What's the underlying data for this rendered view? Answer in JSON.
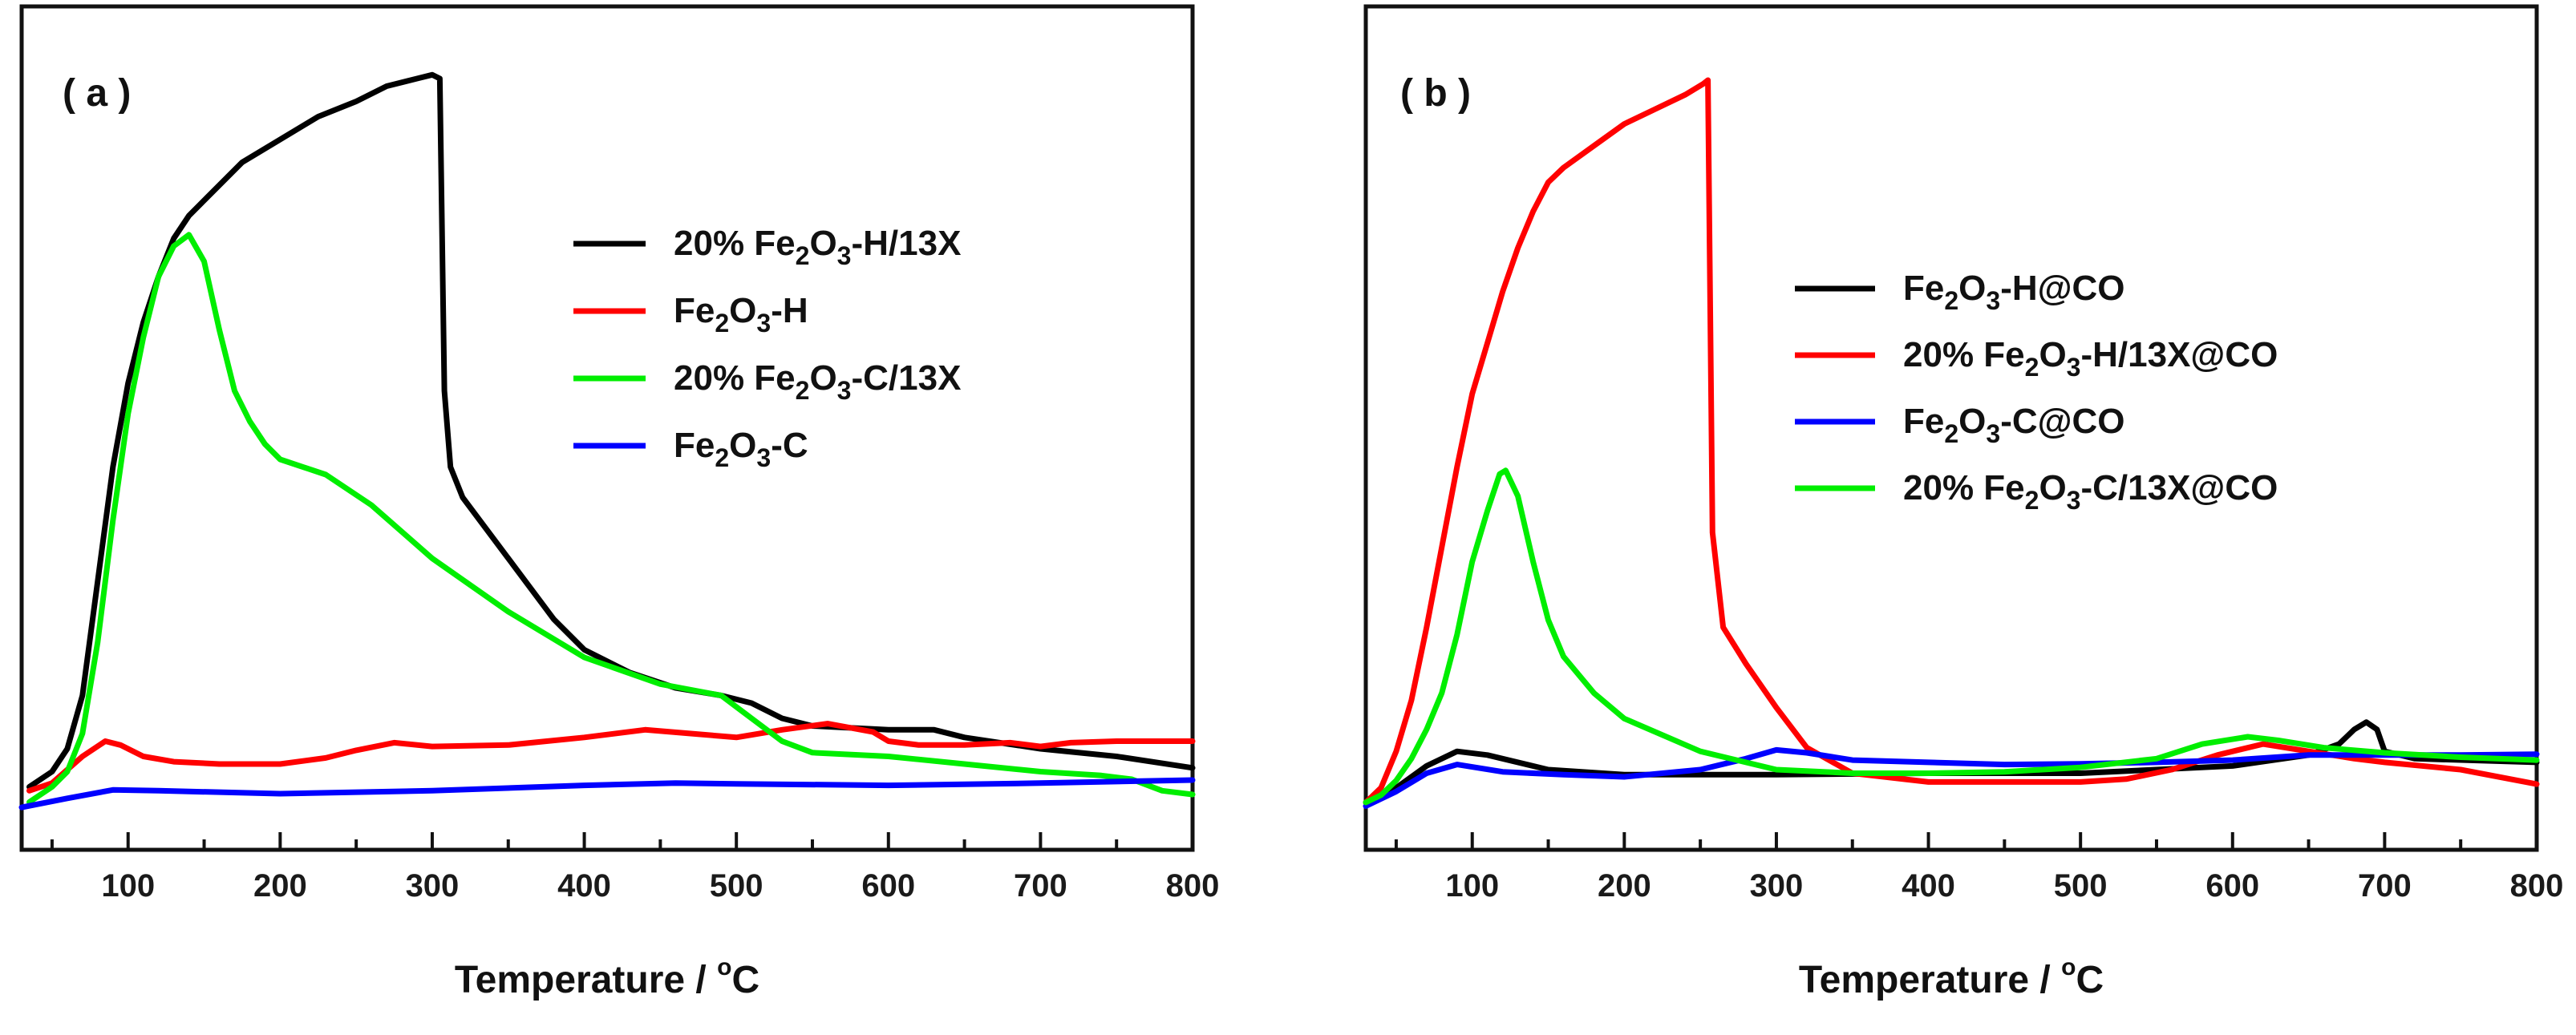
{
  "chart_data": [
    {
      "type": "line",
      "panel_label": "( a )",
      "xlabel": "Temperature / ",
      "xlabel_unit_sup": "o",
      "xlabel_unit": "C",
      "xlim": [
        30,
        800
      ],
      "ylim": [
        0,
        100
      ],
      "xticks": [
        100,
        200,
        300,
        400,
        500,
        600,
        700,
        800
      ],
      "yticks_shown": false,
      "legend_position": "top-right",
      "series": [
        {
          "name": "20% Fe2O3-H/13X",
          "legend": {
            "pre": "20% Fe",
            "s1": "2",
            "mid": "O",
            "s2": "3",
            "post": "-H/13X"
          },
          "color": "#000000",
          "points": [
            [
              35,
              3
            ],
            [
              50,
              5
            ],
            [
              60,
              8
            ],
            [
              70,
              15
            ],
            [
              80,
              30
            ],
            [
              90,
              45
            ],
            [
              100,
              56
            ],
            [
              110,
              64
            ],
            [
              120,
              70
            ],
            [
              130,
              75
            ],
            [
              140,
              78
            ],
            [
              150,
              80
            ],
            [
              175,
              85
            ],
            [
              200,
              88
            ],
            [
              225,
              91
            ],
            [
              250,
              93
            ],
            [
              270,
              95
            ],
            [
              290,
              96
            ],
            [
              300,
              96.5
            ],
            [
              305,
              96
            ],
            [
              308,
              55
            ],
            [
              312,
              45
            ],
            [
              320,
              41
            ],
            [
              350,
              33
            ],
            [
              380,
              25
            ],
            [
              400,
              21
            ],
            [
              430,
              18
            ],
            [
              460,
              16
            ],
            [
              490,
              15
            ],
            [
              510,
              14
            ],
            [
              530,
              12
            ],
            [
              550,
              11
            ],
            [
              600,
              10.5
            ],
            [
              630,
              10.5
            ],
            [
              650,
              9.5
            ],
            [
              700,
              8
            ],
            [
              750,
              7
            ],
            [
              800,
              5.5
            ]
          ]
        },
        {
          "name": "Fe2O3-H",
          "legend": {
            "pre": "Fe",
            "s1": "2",
            "mid": "O",
            "s2": "3",
            "post": "-H"
          },
          "color": "#ff0000",
          "points": [
            [
              35,
              2.5
            ],
            [
              50,
              3.5
            ],
            [
              70,
              7
            ],
            [
              85,
              9
            ],
            [
              95,
              8.5
            ],
            [
              110,
              7
            ],
            [
              130,
              6.3
            ],
            [
              160,
              6
            ],
            [
              200,
              6
            ],
            [
              230,
              6.8
            ],
            [
              250,
              7.8
            ],
            [
              275,
              8.8
            ],
            [
              300,
              8.3
            ],
            [
              350,
              8.5
            ],
            [
              400,
              9.5
            ],
            [
              440,
              10.5
            ],
            [
              470,
              10
            ],
            [
              500,
              9.5
            ],
            [
              530,
              10.5
            ],
            [
              560,
              11.3
            ],
            [
              590,
              10.2
            ],
            [
              600,
              9
            ],
            [
              620,
              8.5
            ],
            [
              650,
              8.5
            ],
            [
              680,
              8.8
            ],
            [
              700,
              8.3
            ],
            [
              720,
              8.8
            ],
            [
              750,
              9
            ],
            [
              800,
              9
            ]
          ]
        },
        {
          "name": "20% Fe2O3-C/13X",
          "legend": {
            "pre": "20% Fe",
            "s1": "2",
            "mid": "O",
            "s2": "3",
            "post": "-C/13X"
          },
          "color": "#00ee00",
          "points": [
            [
              35,
              1
            ],
            [
              50,
              3
            ],
            [
              60,
              5
            ],
            [
              70,
              10
            ],
            [
              80,
              22
            ],
            [
              90,
              38
            ],
            [
              100,
              52
            ],
            [
              110,
              62
            ],
            [
              120,
              70
            ],
            [
              130,
              74
            ],
            [
              140,
              75.5
            ],
            [
              150,
              72
            ],
            [
              160,
              63
            ],
            [
              170,
              55
            ],
            [
              180,
              51
            ],
            [
              190,
              48
            ],
            [
              200,
              46
            ],
            [
              230,
              44
            ],
            [
              260,
              40
            ],
            [
              300,
              33
            ],
            [
              350,
              26
            ],
            [
              400,
              20
            ],
            [
              450,
              16.5
            ],
            [
              490,
              15
            ],
            [
              510,
              12
            ],
            [
              530,
              9
            ],
            [
              550,
              7.5
            ],
            [
              600,
              7
            ],
            [
              650,
              6
            ],
            [
              700,
              5
            ],
            [
              740,
              4.5
            ],
            [
              760,
              4
            ],
            [
              780,
              2.5
            ],
            [
              800,
              2
            ]
          ]
        },
        {
          "name": "Fe2O3-C",
          "legend": {
            "pre": "Fe",
            "s1": "2",
            "mid": "O",
            "s2": "3",
            "post": "-C"
          },
          "color": "#0000ff",
          "points": [
            [
              30,
              0.3
            ],
            [
              60,
              1.5
            ],
            [
              90,
              2.6
            ],
            [
              120,
              2.5
            ],
            [
              200,
              2.1
            ],
            [
              300,
              2.5
            ],
            [
              400,
              3.2
            ],
            [
              460,
              3.5
            ],
            [
              500,
              3.4
            ],
            [
              600,
              3.2
            ],
            [
              700,
              3.5
            ],
            [
              800,
              3.9
            ]
          ]
        }
      ]
    },
    {
      "type": "line",
      "panel_label": "( b )",
      "xlabel": "Temperature / ",
      "xlabel_unit_sup": "o",
      "xlabel_unit": "C",
      "xlim": [
        30,
        800
      ],
      "ylim": [
        0,
        100
      ],
      "xticks": [
        100,
        200,
        300,
        400,
        500,
        600,
        700,
        800
      ],
      "yticks_shown": false,
      "legend_position": "right",
      "series": [
        {
          "name": "Fe2O3-H@CO",
          "legend": {
            "pre": "Fe",
            "s1": "2",
            "mid": "O",
            "s2": "3",
            "post": "-H@CO"
          },
          "color": "#000000",
          "points": [
            [
              30,
              1
            ],
            [
              50,
              3
            ],
            [
              70,
              6
            ],
            [
              90,
              8
            ],
            [
              110,
              7.5
            ],
            [
              150,
              5.5
            ],
            [
              200,
              4.8
            ],
            [
              300,
              4.8
            ],
            [
              400,
              5
            ],
            [
              500,
              5
            ],
            [
              600,
              6
            ],
            [
              650,
              7.5
            ],
            [
              670,
              9
            ],
            [
              680,
              11
            ],
            [
              688,
              12
            ],
            [
              695,
              11
            ],
            [
              700,
              8
            ],
            [
              720,
              7
            ],
            [
              800,
              6.5
            ]
          ]
        },
        {
          "name": "20% Fe2O3-H/13X@CO",
          "legend": {
            "pre": "20% Fe",
            "s1": "2",
            "mid": "O",
            "s2": "3",
            "post": "-H/13X@CO"
          },
          "color": "#ff0000",
          "points": [
            [
              30,
              1
            ],
            [
              40,
              3
            ],
            [
              50,
              8
            ],
            [
              60,
              15
            ],
            [
              70,
              25
            ],
            [
              80,
              36
            ],
            [
              90,
              47
            ],
            [
              100,
              57
            ],
            [
              110,
              64
            ],
            [
              120,
              71
            ],
            [
              130,
              77
            ],
            [
              140,
              82
            ],
            [
              150,
              86
            ],
            [
              160,
              88
            ],
            [
              180,
              91
            ],
            [
              200,
              94
            ],
            [
              220,
              96
            ],
            [
              240,
              98
            ],
            [
              252,
              99.5
            ],
            [
              255,
              100
            ],
            [
              258,
              38
            ],
            [
              265,
              25
            ],
            [
              280,
              20
            ],
            [
              300,
              14
            ],
            [
              320,
              8.5
            ],
            [
              350,
              5
            ],
            [
              400,
              3.8
            ],
            [
              450,
              3.8
            ],
            [
              500,
              3.8
            ],
            [
              530,
              4.2
            ],
            [
              560,
              5.5
            ],
            [
              590,
              7.5
            ],
            [
              620,
              9
            ],
            [
              650,
              8
            ],
            [
              680,
              7
            ],
            [
              700,
              6.5
            ],
            [
              750,
              5.5
            ],
            [
              800,
              3.5
            ]
          ]
        },
        {
          "name": "Fe2O3-C@CO",
          "legend": {
            "pre": "Fe",
            "s1": "2",
            "mid": "O",
            "s2": "3",
            "post": "-C@CO"
          },
          "color": "#0000ff",
          "points": [
            [
              30,
              0.5
            ],
            [
              50,
              2.5
            ],
            [
              70,
              5
            ],
            [
              90,
              6.2
            ],
            [
              120,
              5.2
            ],
            [
              160,
              4.8
            ],
            [
              200,
              4.5
            ],
            [
              250,
              5.5
            ],
            [
              280,
              7
            ],
            [
              300,
              8.2
            ],
            [
              320,
              7.8
            ],
            [
              350,
              6.8
            ],
            [
              400,
              6.5
            ],
            [
              450,
              6.2
            ],
            [
              500,
              6.3
            ],
            [
              550,
              6.5
            ],
            [
              600,
              6.8
            ],
            [
              650,
              7.5
            ],
            [
              700,
              7.5
            ],
            [
              750,
              7.5
            ],
            [
              800,
              7.6
            ]
          ]
        },
        {
          "name": "20% Fe2O3-C/13X@CO",
          "legend": {
            "pre": "20% Fe",
            "s1": "2",
            "mid": "O",
            "s2": "3",
            "post": "-C/13X@CO"
          },
          "color": "#00ee00",
          "points": [
            [
              30,
              1
            ],
            [
              40,
              2
            ],
            [
              50,
              4
            ],
            [
              60,
              7
            ],
            [
              70,
              11
            ],
            [
              80,
              16
            ],
            [
              90,
              24
            ],
            [
              100,
              34
            ],
            [
              110,
              41
            ],
            [
              118,
              46
            ],
            [
              122,
              46.5
            ],
            [
              130,
              43
            ],
            [
              140,
              34
            ],
            [
              150,
              26
            ],
            [
              160,
              21
            ],
            [
              180,
              16
            ],
            [
              200,
              12.5
            ],
            [
              250,
              8
            ],
            [
              300,
              5.5
            ],
            [
              350,
              5
            ],
            [
              400,
              5
            ],
            [
              450,
              5.2
            ],
            [
              500,
              5.8
            ],
            [
              550,
              7
            ],
            [
              580,
              9
            ],
            [
              610,
              10
            ],
            [
              630,
              9.5
            ],
            [
              660,
              8.5
            ],
            [
              700,
              7.8
            ],
            [
              750,
              7.2
            ],
            [
              800,
              6.8
            ]
          ]
        }
      ]
    }
  ]
}
